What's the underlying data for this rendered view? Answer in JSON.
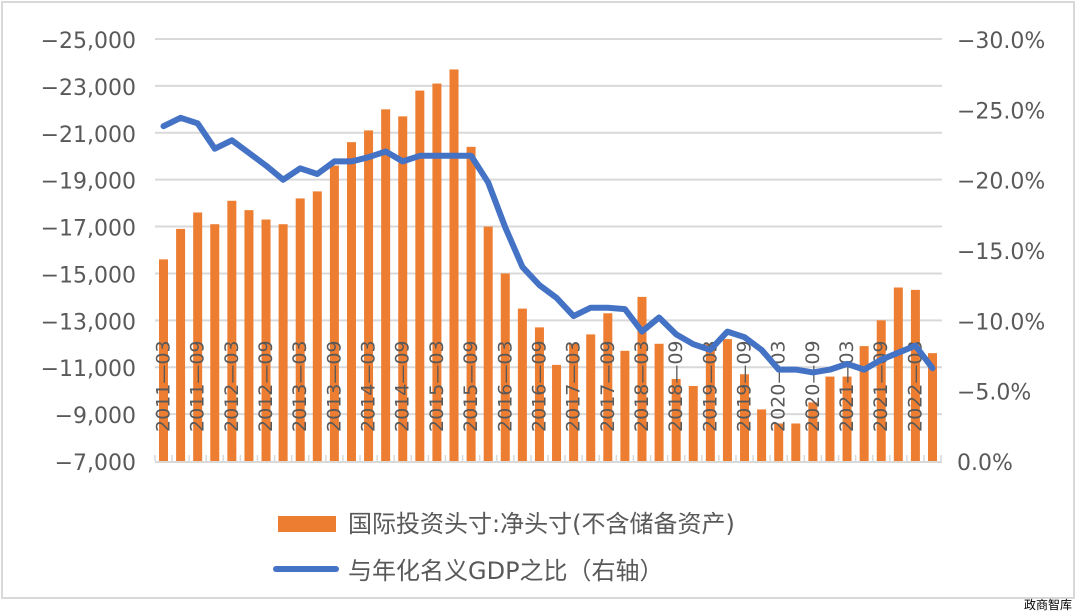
{
  "chart_data": {
    "type": "bar+line",
    "title": "",
    "categories": [
      "2011-03",
      "2011-06",
      "2011-09",
      "2011-12",
      "2012-03",
      "2012-06",
      "2012-09",
      "2012-12",
      "2013-03",
      "2013-06",
      "2013-09",
      "2013-12",
      "2014-03",
      "2014-06",
      "2014-09",
      "2014-12",
      "2015-03",
      "2015-06",
      "2015-09",
      "2015-12",
      "2016-03",
      "2016-06",
      "2016-09",
      "2016-12",
      "2017-03",
      "2017-06",
      "2017-09",
      "2017-12",
      "2018-03",
      "2018-06",
      "2018-09",
      "2018-12",
      "2019-03",
      "2019-06",
      "2019-09",
      "2019-12",
      "2020-03",
      "2020-06",
      "2020-09",
      "2020-12",
      "2021-03",
      "2021-06",
      "2021-09",
      "2021-12",
      "2022-03",
      "2022-06"
    ],
    "x_tick_labels": [
      "2011—03",
      "2011—09",
      "2012—03",
      "2012—09",
      "2013—03",
      "2013—09",
      "2014—03",
      "2014—09",
      "2015—03",
      "2015—09",
      "2016—03",
      "2016—09",
      "2017—03",
      "2017—09",
      "2018—03",
      "2018—09",
      "2019—03",
      "2019—09",
      "2020—03",
      "2020—09",
      "2021—03",
      "2021—09",
      "2022—03"
    ],
    "series": [
      {
        "name": "国际投资头寸:净头寸(不含储备资产)",
        "type": "bar",
        "axis": "left",
        "color": "#ed7d31",
        "values": [
          -15600,
          -16900,
          -17600,
          -17100,
          -18100,
          -17700,
          -17300,
          -17100,
          -18200,
          -18500,
          -19600,
          -20600,
          -21100,
          -22000,
          -21700,
          -22800,
          -23100,
          -23700,
          -20400,
          -17000,
          -15000,
          -13500,
          -12700,
          -11100,
          -12000,
          -12400,
          -13300,
          -11700,
          -14000,
          -12000,
          -10500,
          -10200,
          -12000,
          -12200,
          -10700,
          -9200,
          -8600,
          -8600,
          -9500,
          -10600,
          -10600,
          -11900,
          -13000,
          -14400,
          -14300,
          -11600
        ]
      },
      {
        "name": "与年化名义GDP之比（右轴）",
        "type": "line",
        "axis": "right",
        "color": "#4472c4",
        "values": [
          -23.8,
          -24.4,
          -24.0,
          -22.2,
          -22.8,
          -21.9,
          -21.0,
          -20.0,
          -20.8,
          -20.4,
          -21.3,
          -21.3,
          -21.6,
          -22.0,
          -21.3,
          -21.7,
          -21.7,
          -21.7,
          -21.7,
          -19.8,
          -16.6,
          -13.8,
          -12.5,
          -11.6,
          -10.3,
          -10.9,
          -10.9,
          -10.8,
          -9.2,
          -10.2,
          -9.0,
          -8.3,
          -7.9,
          -9.2,
          -8.8,
          -7.9,
          -6.5,
          -6.5,
          -6.3,
          -6.5,
          -6.9,
          -6.5,
          -7.2,
          -7.7,
          -8.2,
          -6.6
        ]
      }
    ],
    "left_axis": {
      "ticks": [
        "−25,000",
        "−23,000",
        "−21,000",
        "−19,000",
        "−17,000",
        "−15,000",
        "−13,000",
        "−11,000",
        "−9,000",
        "−7,000"
      ],
      "range": [
        -7000,
        -25000
      ],
      "inverted": true
    },
    "right_axis": {
      "ticks": [
        "−30.0%",
        "−25.0%",
        "−20.0%",
        "−15.0%",
        "−10.0%",
        "−5.0%",
        "0.0%"
      ],
      "range": [
        0,
        -30
      ],
      "inverted": true
    },
    "xlabel": "",
    "ylabel": "",
    "grid": true,
    "legend_position": "bottom"
  },
  "legend": {
    "bar_label": "国际投资头寸:净头寸(不含储备资产)",
    "line_label": "与年化名义GDP之比（右轴）"
  },
  "watermark": "政商智库"
}
